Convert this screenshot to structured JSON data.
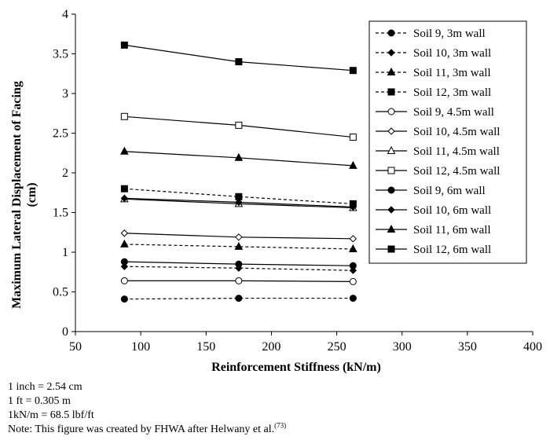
{
  "chart_data": {
    "type": "line",
    "xlabel": "Reinforcement Stiffness (kN/m)",
    "ylabel": "Maximum Lateral Displacement of Facing (cm)",
    "ylabel_lines": [
      "Maximum Lateral Displacement of Facing",
      "(cm)"
    ],
    "xlim": [
      50,
      400
    ],
    "ylim": [
      0,
      4
    ],
    "xticks": [
      50,
      100,
      150,
      200,
      250,
      300,
      350,
      400
    ],
    "yticks": [
      0,
      0.5,
      1,
      1.5,
      2,
      2.5,
      3,
      3.5,
      4
    ],
    "ytick_labels": [
      "0",
      "0.5",
      "1",
      "1.5",
      "2",
      "2.5",
      "3",
      "3.5",
      "4"
    ],
    "grid": false,
    "legend_position": "top-right",
    "x": [
      87.5,
      175,
      262.5
    ],
    "series": [
      {
        "name": "Soil 9, 3m wall",
        "values": [
          0.41,
          0.42,
          0.42
        ],
        "marker": "circle",
        "filled": true,
        "dash": true
      },
      {
        "name": "Soil 10, 3m wall",
        "values": [
          0.82,
          0.8,
          0.77
        ],
        "marker": "diamond",
        "filled": true,
        "dash": true
      },
      {
        "name": "Soil 11, 3m wall",
        "values": [
          1.1,
          1.07,
          1.04
        ],
        "marker": "triangle",
        "filled": true,
        "dash": true
      },
      {
        "name": "Soil 12, 3m wall",
        "values": [
          1.8,
          1.7,
          1.61
        ],
        "marker": "square",
        "filled": true,
        "dash": true
      },
      {
        "name": "Soil 9, 4.5m wall",
        "values": [
          0.64,
          0.64,
          0.63
        ],
        "marker": "circle",
        "filled": false,
        "dash": false
      },
      {
        "name": "Soil 10, 4.5m wall",
        "values": [
          1.24,
          1.19,
          1.17
        ],
        "marker": "diamond",
        "filled": false,
        "dash": false
      },
      {
        "name": "Soil 11, 4.5m wall",
        "values": [
          1.67,
          1.61,
          1.56
        ],
        "marker": "triangle",
        "filled": false,
        "dash": false
      },
      {
        "name": "Soil 12, 4.5m wall",
        "values": [
          2.71,
          2.6,
          2.45
        ],
        "marker": "square",
        "filled": false,
        "dash": false
      },
      {
        "name": "Soil 9, 6m wall",
        "values": [
          0.88,
          0.85,
          0.83
        ],
        "marker": "circle",
        "filled": true,
        "dash": false
      },
      {
        "name": "Soil 10, 6m wall",
        "values": [
          1.68,
          1.63,
          1.57
        ],
        "marker": "diamond",
        "filled": true,
        "dash": false
      },
      {
        "name": "Soil 11, 6m wall",
        "values": [
          2.27,
          2.19,
          2.09
        ],
        "marker": "triangle",
        "filled": true,
        "dash": false
      },
      {
        "name": "Soil 12, 6m wall",
        "values": [
          3.61,
          3.4,
          3.29
        ],
        "marker": "square",
        "filled": true,
        "dash": false
      }
    ]
  },
  "notes": {
    "line1": "1 inch = 2.54 cm",
    "line2": "1 ft = 0.305 m",
    "line3": "1kN/m = 68.5 lbf/ft",
    "line4_text": "Note: This figure was created by FHWA after Helwany et al.",
    "line4_ref": "(73)"
  }
}
